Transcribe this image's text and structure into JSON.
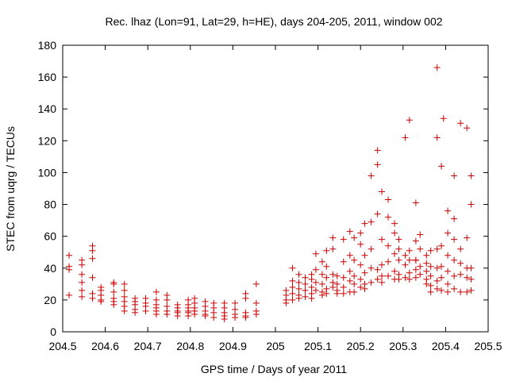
{
  "chart_data": {
    "type": "scatter",
    "title": "Rec. lhaz (Lon=91, Lat=29, h=HE), days 204-205, 2011, window 002",
    "xlabel": "GPS time / Days of year 2011",
    "ylabel": "STEC from uqrg / TECUs",
    "xlim": [
      204.5,
      205.5
    ],
    "ylim": [
      0,
      180
    ],
    "x_ticks": [
      204.5,
      204.6,
      204.7,
      204.8,
      204.9,
      205,
      205.1,
      205.2,
      205.3,
      205.4,
      205.5
    ],
    "x_tick_labels": [
      "204.5",
      "204.6",
      "204.7",
      "204.8",
      "204.9",
      "205",
      "205.1",
      "205.2",
      "205.3",
      "205.4",
      "205.5"
    ],
    "y_ticks": [
      0,
      20,
      40,
      60,
      80,
      100,
      120,
      140,
      160,
      180
    ],
    "y_tick_labels": [
      "0",
      "20",
      "40",
      "60",
      "80",
      "100",
      "120",
      "140",
      "160",
      "180"
    ],
    "grid": false,
    "marker": "+",
    "color": "#cc0000",
    "series": [
      {
        "name": "STEC",
        "points": [
          [
            204.515,
            48
          ],
          [
            204.515,
            41
          ],
          [
            204.515,
            39
          ],
          [
            204.515,
            23
          ],
          [
            204.545,
            45
          ],
          [
            204.545,
            42
          ],
          [
            204.545,
            36
          ],
          [
            204.545,
            31
          ],
          [
            204.545,
            26
          ],
          [
            204.545,
            22
          ],
          [
            204.57,
            54
          ],
          [
            204.57,
            51
          ],
          [
            204.57,
            46
          ],
          [
            204.57,
            34
          ],
          [
            204.57,
            24
          ],
          [
            204.57,
            21
          ],
          [
            204.59,
            28
          ],
          [
            204.59,
            26
          ],
          [
            204.59,
            23
          ],
          [
            204.59,
            20
          ],
          [
            204.59,
            19
          ],
          [
            204.62,
            31
          ],
          [
            204.62,
            30
          ],
          [
            204.62,
            25
          ],
          [
            204.62,
            21
          ],
          [
            204.62,
            19
          ],
          [
            204.62,
            17
          ],
          [
            204.645,
            30
          ],
          [
            204.645,
            26
          ],
          [
            204.645,
            22
          ],
          [
            204.645,
            19
          ],
          [
            204.645,
            16
          ],
          [
            204.645,
            13
          ],
          [
            204.67,
            21
          ],
          [
            204.67,
            19
          ],
          [
            204.67,
            17
          ],
          [
            204.67,
            14
          ],
          [
            204.67,
            12
          ],
          [
            204.695,
            21
          ],
          [
            204.695,
            18
          ],
          [
            204.695,
            16
          ],
          [
            204.695,
            13
          ],
          [
            204.72,
            25
          ],
          [
            204.72,
            20
          ],
          [
            204.72,
            17
          ],
          [
            204.72,
            15
          ],
          [
            204.72,
            13
          ],
          [
            204.72,
            11
          ],
          [
            204.745,
            23
          ],
          [
            204.745,
            20
          ],
          [
            204.745,
            16
          ],
          [
            204.745,
            13
          ],
          [
            204.745,
            11
          ],
          [
            204.77,
            17
          ],
          [
            204.77,
            15
          ],
          [
            204.77,
            13
          ],
          [
            204.77,
            12
          ],
          [
            204.77,
            10
          ],
          [
            204.795,
            20
          ],
          [
            204.795,
            17
          ],
          [
            204.795,
            15
          ],
          [
            204.795,
            13
          ],
          [
            204.795,
            12
          ],
          [
            204.795,
            10
          ],
          [
            204.81,
            21
          ],
          [
            204.81,
            18
          ],
          [
            204.81,
            15
          ],
          [
            204.81,
            13
          ],
          [
            204.81,
            11
          ],
          [
            204.835,
            19
          ],
          [
            204.835,
            16
          ],
          [
            204.835,
            13
          ],
          [
            204.835,
            11
          ],
          [
            204.835,
            10
          ],
          [
            204.855,
            18
          ],
          [
            204.855,
            15
          ],
          [
            204.855,
            12
          ],
          [
            204.855,
            9
          ],
          [
            204.88,
            18
          ],
          [
            204.88,
            15
          ],
          [
            204.88,
            12
          ],
          [
            204.88,
            10
          ],
          [
            204.88,
            8
          ],
          [
            204.905,
            18
          ],
          [
            204.905,
            14
          ],
          [
            204.905,
            11
          ],
          [
            204.905,
            9
          ],
          [
            204.93,
            24
          ],
          [
            204.93,
            21
          ],
          [
            204.93,
            12
          ],
          [
            204.93,
            10
          ],
          [
            204.93,
            9
          ],
          [
            204.955,
            30
          ],
          [
            204.955,
            18
          ],
          [
            204.955,
            13
          ],
          [
            204.955,
            11
          ],
          [
            205.025,
            26
          ],
          [
            205.025,
            23
          ],
          [
            205.025,
            20
          ],
          [
            205.025,
            18
          ],
          [
            205.04,
            40
          ],
          [
            205.04,
            32
          ],
          [
            205.04,
            28
          ],
          [
            205.04,
            24
          ],
          [
            205.04,
            20
          ],
          [
            205.055,
            36
          ],
          [
            205.055,
            31
          ],
          [
            205.055,
            27
          ],
          [
            205.055,
            23
          ],
          [
            205.055,
            21
          ],
          [
            205.07,
            34
          ],
          [
            205.07,
            30
          ],
          [
            205.07,
            26
          ],
          [
            205.07,
            22
          ],
          [
            205.085,
            36
          ],
          [
            205.085,
            33
          ],
          [
            205.085,
            28
          ],
          [
            205.085,
            24
          ],
          [
            205.085,
            21
          ],
          [
            205.095,
            49
          ],
          [
            205.095,
            39
          ],
          [
            205.095,
            31
          ],
          [
            205.095,
            26
          ],
          [
            205.11,
            44
          ],
          [
            205.11,
            36
          ],
          [
            205.11,
            30
          ],
          [
            205.11,
            25
          ],
          [
            205.11,
            23
          ],
          [
            205.12,
            51
          ],
          [
            205.12,
            41
          ],
          [
            205.12,
            34
          ],
          [
            205.12,
            27
          ],
          [
            205.12,
            24
          ],
          [
            205.135,
            59
          ],
          [
            205.135,
            52
          ],
          [
            205.135,
            36
          ],
          [
            205.135,
            31
          ],
          [
            205.135,
            28
          ],
          [
            205.145,
            35
          ],
          [
            205.145,
            30
          ],
          [
            205.145,
            26
          ],
          [
            205.145,
            24
          ],
          [
            205.16,
            58
          ],
          [
            205.16,
            44
          ],
          [
            205.16,
            34
          ],
          [
            205.16,
            28
          ],
          [
            205.16,
            24
          ],
          [
            205.175,
            63
          ],
          [
            205.175,
            48
          ],
          [
            205.175,
            38
          ],
          [
            205.175,
            32
          ],
          [
            205.175,
            25
          ],
          [
            205.185,
            59
          ],
          [
            205.185,
            45
          ],
          [
            205.185,
            35
          ],
          [
            205.185,
            30
          ],
          [
            205.185,
            25
          ],
          [
            205.2,
            62
          ],
          [
            205.2,
            55
          ],
          [
            205.2,
            42
          ],
          [
            205.2,
            33
          ],
          [
            205.2,
            28
          ],
          [
            205.21,
            68
          ],
          [
            205.21,
            48
          ],
          [
            205.21,
            37
          ],
          [
            205.21,
            30
          ],
          [
            205.21,
            27
          ],
          [
            205.225,
            98
          ],
          [
            205.225,
            69
          ],
          [
            205.225,
            52
          ],
          [
            205.225,
            40
          ],
          [
            205.225,
            31
          ],
          [
            205.24,
            114
          ],
          [
            205.24,
            105
          ],
          [
            205.24,
            74
          ],
          [
            205.24,
            39
          ],
          [
            205.24,
            33
          ],
          [
            205.25,
            88
          ],
          [
            205.25,
            58
          ],
          [
            205.25,
            42
          ],
          [
            205.25,
            35
          ],
          [
            205.25,
            31
          ],
          [
            205.265,
            83
          ],
          [
            205.265,
            72
          ],
          [
            205.265,
            54
          ],
          [
            205.265,
            44
          ],
          [
            205.265,
            35
          ],
          [
            205.28,
            68
          ],
          [
            205.28,
            62
          ],
          [
            205.28,
            49
          ],
          [
            205.28,
            38
          ],
          [
            205.28,
            33
          ],
          [
            205.29,
            58
          ],
          [
            205.29,
            52
          ],
          [
            205.29,
            45
          ],
          [
            205.29,
            36
          ],
          [
            205.29,
            33
          ],
          [
            205.305,
            122
          ],
          [
            205.305,
            48
          ],
          [
            205.305,
            42
          ],
          [
            205.305,
            34
          ],
          [
            205.315,
            133
          ],
          [
            205.315,
            51
          ],
          [
            205.315,
            45
          ],
          [
            205.315,
            37
          ],
          [
            205.315,
            33
          ],
          [
            205.33,
            81
          ],
          [
            205.33,
            57
          ],
          [
            205.33,
            45
          ],
          [
            205.33,
            39
          ],
          [
            205.33,
            34
          ],
          [
            205.34,
            61
          ],
          [
            205.34,
            52
          ],
          [
            205.34,
            41
          ],
          [
            205.34,
            36
          ],
          [
            205.355,
            48
          ],
          [
            205.355,
            43
          ],
          [
            205.355,
            38
          ],
          [
            205.355,
            33
          ],
          [
            205.355,
            30
          ],
          [
            205.365,
            51
          ],
          [
            205.365,
            41
          ],
          [
            205.365,
            35
          ],
          [
            205.365,
            29
          ],
          [
            205.365,
            25
          ],
          [
            205.38,
            166
          ],
          [
            205.38,
            122
          ],
          [
            205.38,
            52
          ],
          [
            205.38,
            40
          ],
          [
            205.38,
            32
          ],
          [
            205.38,
            27
          ],
          [
            205.39,
            104
          ],
          [
            205.39,
            54
          ],
          [
            205.39,
            41
          ],
          [
            205.39,
            34
          ],
          [
            205.39,
            26
          ],
          [
            205.405,
            76
          ],
          [
            205.405,
            62
          ],
          [
            205.405,
            48
          ],
          [
            205.405,
            38
          ],
          [
            205.405,
            30
          ],
          [
            205.405,
            25
          ],
          [
            205.42,
            98
          ],
          [
            205.42,
            71
          ],
          [
            205.42,
            58
          ],
          [
            205.42,
            45
          ],
          [
            205.42,
            35
          ],
          [
            205.42,
            27
          ],
          [
            205.435,
            131
          ],
          [
            205.435,
            52
          ],
          [
            205.435,
            43
          ],
          [
            205.435,
            36
          ],
          [
            205.435,
            25
          ],
          [
            205.45,
            128
          ],
          [
            205.45,
            59
          ],
          [
            205.45,
            40
          ],
          [
            205.45,
            34
          ],
          [
            205.45,
            25
          ],
          [
            205.46,
            98
          ],
          [
            205.46,
            80
          ],
          [
            205.46,
            40
          ],
          [
            205.46,
            33
          ],
          [
            205.46,
            26
          ],
          [
            205.395,
            134
          ],
          [
            205.33,
            45
          ]
        ]
      }
    ]
  }
}
